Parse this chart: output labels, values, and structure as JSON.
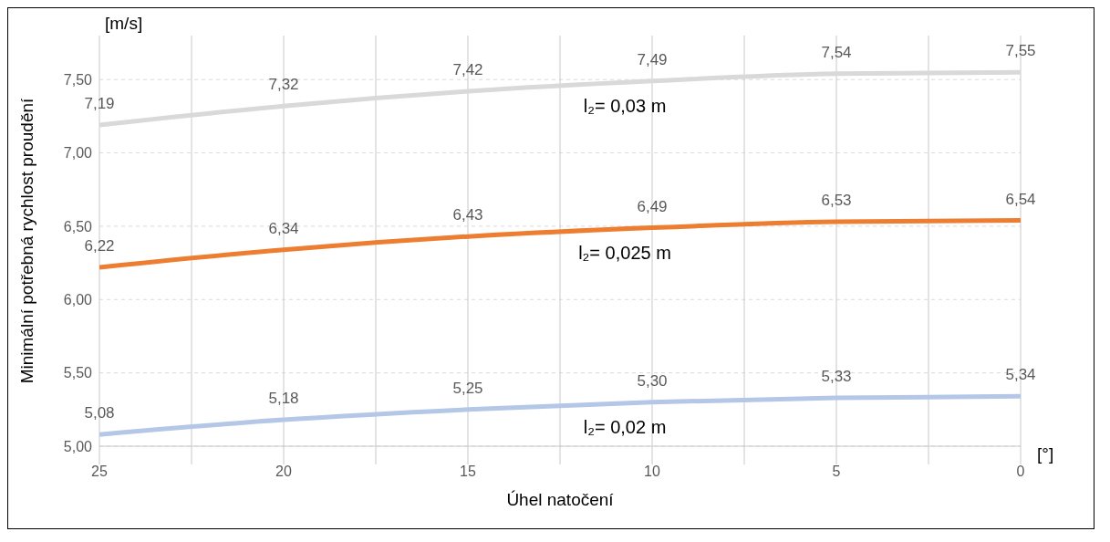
{
  "chart_data": {
    "type": "line",
    "xlabel": "Úhel natočení",
    "ylabel": "Minimální potřebná rychlost proudění",
    "annotations": [
      "[m/s]",
      "[°]"
    ],
    "x": [
      25,
      20,
      15,
      10,
      5,
      0
    ],
    "xlim": [
      25,
      0
    ],
    "xticks": [
      25,
      {
        "value": 22.5,
        "label": null
      },
      20,
      {
        "value": 17.5,
        "label": null
      },
      15,
      {
        "value": 12.5,
        "label": null
      },
      10,
      {
        "value": 7.5,
        "label": null
      },
      5,
      {
        "value": 2.5,
        "label": null
      },
      0
    ],
    "ylim": [
      5,
      7.8
    ],
    "yticks": [
      {
        "value": 5,
        "label": "5,00"
      },
      {
        "value": 5.5,
        "label": "5,50"
      },
      {
        "value": 6,
        "label": "6,00"
      },
      {
        "value": 6.5,
        "label": "6,50"
      },
      {
        "value": 7,
        "label": "7,00"
      },
      {
        "value": 7.5,
        "label": "7,50"
      }
    ],
    "grid": true,
    "marker": "none",
    "line_style": "solid",
    "series": [
      {
        "name": "l₂= 0,03 m",
        "color": "#d9d9d9",
        "values": [
          7.19,
          7.32,
          7.42,
          7.49,
          7.54,
          7.55
        ],
        "value_labels": [
          "7,19",
          "7,32",
          "7,42",
          "7,49",
          "7,54",
          "7,55"
        ]
      },
      {
        "name": "l₂= 0,025 m",
        "color": "#ed7d31",
        "values": [
          6.22,
          6.34,
          6.43,
          6.49,
          6.53,
          6.54
        ],
        "value_labels": [
          "6,22",
          "6,34",
          "6,43",
          "6,49",
          "6,53",
          "6,54"
        ]
      },
      {
        "name": "l₂= 0,02 m",
        "color": "#b4c7e7",
        "values": [
          5.08,
          5.18,
          5.25,
          5.3,
          5.33,
          5.34
        ],
        "value_labels": [
          "5,08",
          "5,18",
          "5,25",
          "5,30",
          "5,33",
          "5,34"
        ]
      }
    ]
  }
}
